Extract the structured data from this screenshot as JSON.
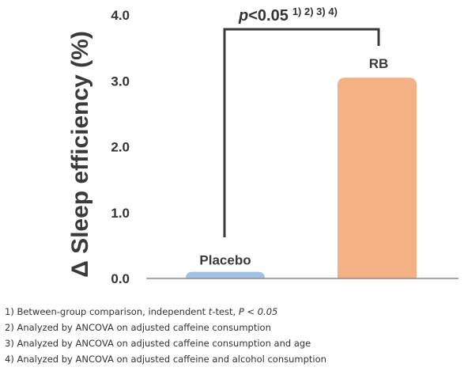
{
  "chart_data": {
    "type": "bar",
    "categories": [
      "Placebo",
      "RB"
    ],
    "values": [
      0.1,
      3.05
    ],
    "colors": [
      "#a3c1e6",
      "#f4b183"
    ],
    "ylabel": "Δ Sleep efficiency (%)",
    "ylim": [
      0,
      4.0
    ],
    "yticks": [
      "0.0",
      "1.0",
      "2.0",
      "3.0",
      "4.0"
    ],
    "grid": false,
    "annotation": {
      "text": "p<0.05",
      "superscript": "1) 2) 3) 4)",
      "between": [
        "Placebo",
        "RB"
      ]
    }
  },
  "footnotes": [
    "1) Between-group comparison, independent t-test, P < 0.05",
    "2) Analyzed by ANCOVA on adjusted caffeine consumption",
    "3) Analyzed by ANCOVA on adjusted caffeine consumption and age",
    "4) Analyzed by ANCOVA on adjusted caffeine and alcohol consumption"
  ]
}
